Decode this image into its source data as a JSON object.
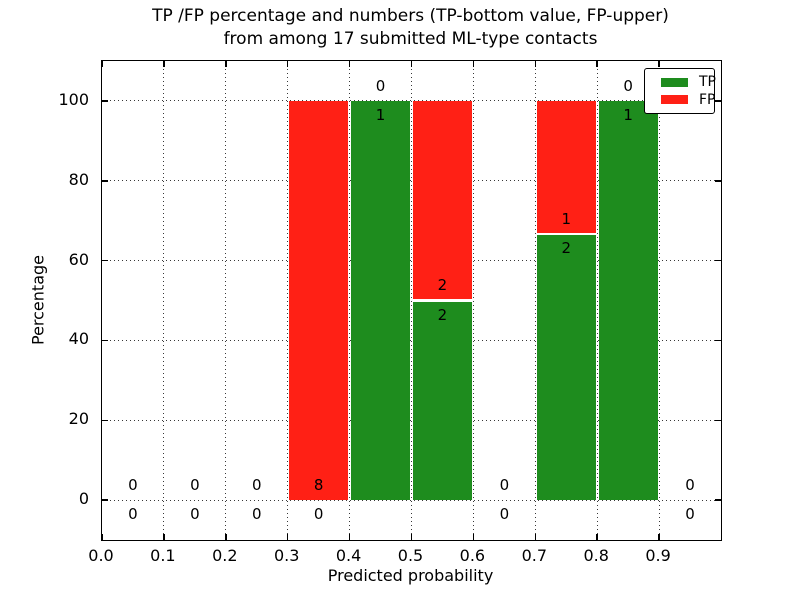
{
  "chart_data": {
    "type": "bar",
    "title_line1": "TP /FP percentage and numbers (TP-bottom value, FP-upper)",
    "title_line2": "from among 17 submitted ML-type contacts",
    "total_contacts": 17,
    "xlabel": "Predicted probability",
    "ylabel": "Percentage",
    "xlim": [
      0.0,
      1.0
    ],
    "ylim": [
      -10,
      110
    ],
    "grid_linestyle": "dotted",
    "legend_position": "upper right",
    "legend": [
      {
        "label": "TP",
        "color": "#1e8c1e"
      },
      {
        "label": "FP",
        "color": "#ff2015"
      }
    ],
    "x_ticks": [
      {
        "v": 0.0,
        "label": "0.0"
      },
      {
        "v": 0.1,
        "label": "0.1"
      },
      {
        "v": 0.2,
        "label": "0.2"
      },
      {
        "v": 0.3,
        "label": "0.3"
      },
      {
        "v": 0.4,
        "label": "0.4"
      },
      {
        "v": 0.5,
        "label": "0.5"
      },
      {
        "v": 0.6,
        "label": "0.6"
      },
      {
        "v": 0.7,
        "label": "0.7"
      },
      {
        "v": 0.8,
        "label": "0.8"
      },
      {
        "v": 0.9,
        "label": "0.9"
      }
    ],
    "y_ticks": [
      {
        "v": 0,
        "label": "0"
      },
      {
        "v": 20,
        "label": "20"
      },
      {
        "v": 40,
        "label": "40"
      },
      {
        "v": 60,
        "label": "60"
      },
      {
        "v": 80,
        "label": "80"
      },
      {
        "v": 100,
        "label": "100"
      }
    ],
    "bins": [
      {
        "x0": 0.0,
        "x1": 0.1,
        "tp": 0,
        "fp": 0,
        "tp_pct": 0,
        "fp_pct": 0
      },
      {
        "x0": 0.1,
        "x1": 0.2,
        "tp": 0,
        "fp": 0,
        "tp_pct": 0,
        "fp_pct": 0
      },
      {
        "x0": 0.2,
        "x1": 0.3,
        "tp": 0,
        "fp": 0,
        "tp_pct": 0,
        "fp_pct": 0
      },
      {
        "x0": 0.3,
        "x1": 0.4,
        "tp": 0,
        "fp": 8,
        "tp_pct": 0,
        "fp_pct": 100
      },
      {
        "x0": 0.4,
        "x1": 0.5,
        "tp": 1,
        "fp": 0,
        "tp_pct": 100,
        "fp_pct": 0
      },
      {
        "x0": 0.5,
        "x1": 0.6,
        "tp": 2,
        "fp": 2,
        "tp_pct": 50,
        "fp_pct": 50
      },
      {
        "x0": 0.6,
        "x1": 0.7,
        "tp": 0,
        "fp": 0,
        "tp_pct": 0,
        "fp_pct": 0
      },
      {
        "x0": 0.7,
        "x1": 0.8,
        "tp": 2,
        "fp": 1,
        "tp_pct": 66.667,
        "fp_pct": 33.333
      },
      {
        "x0": 0.8,
        "x1": 0.9,
        "tp": 1,
        "fp": 0,
        "tp_pct": 100,
        "fp_pct": 0
      },
      {
        "x0": 0.9,
        "x1": 1.0,
        "tp": 0,
        "fp": 0,
        "tp_pct": 0,
        "fp_pct": 0
      }
    ]
  }
}
